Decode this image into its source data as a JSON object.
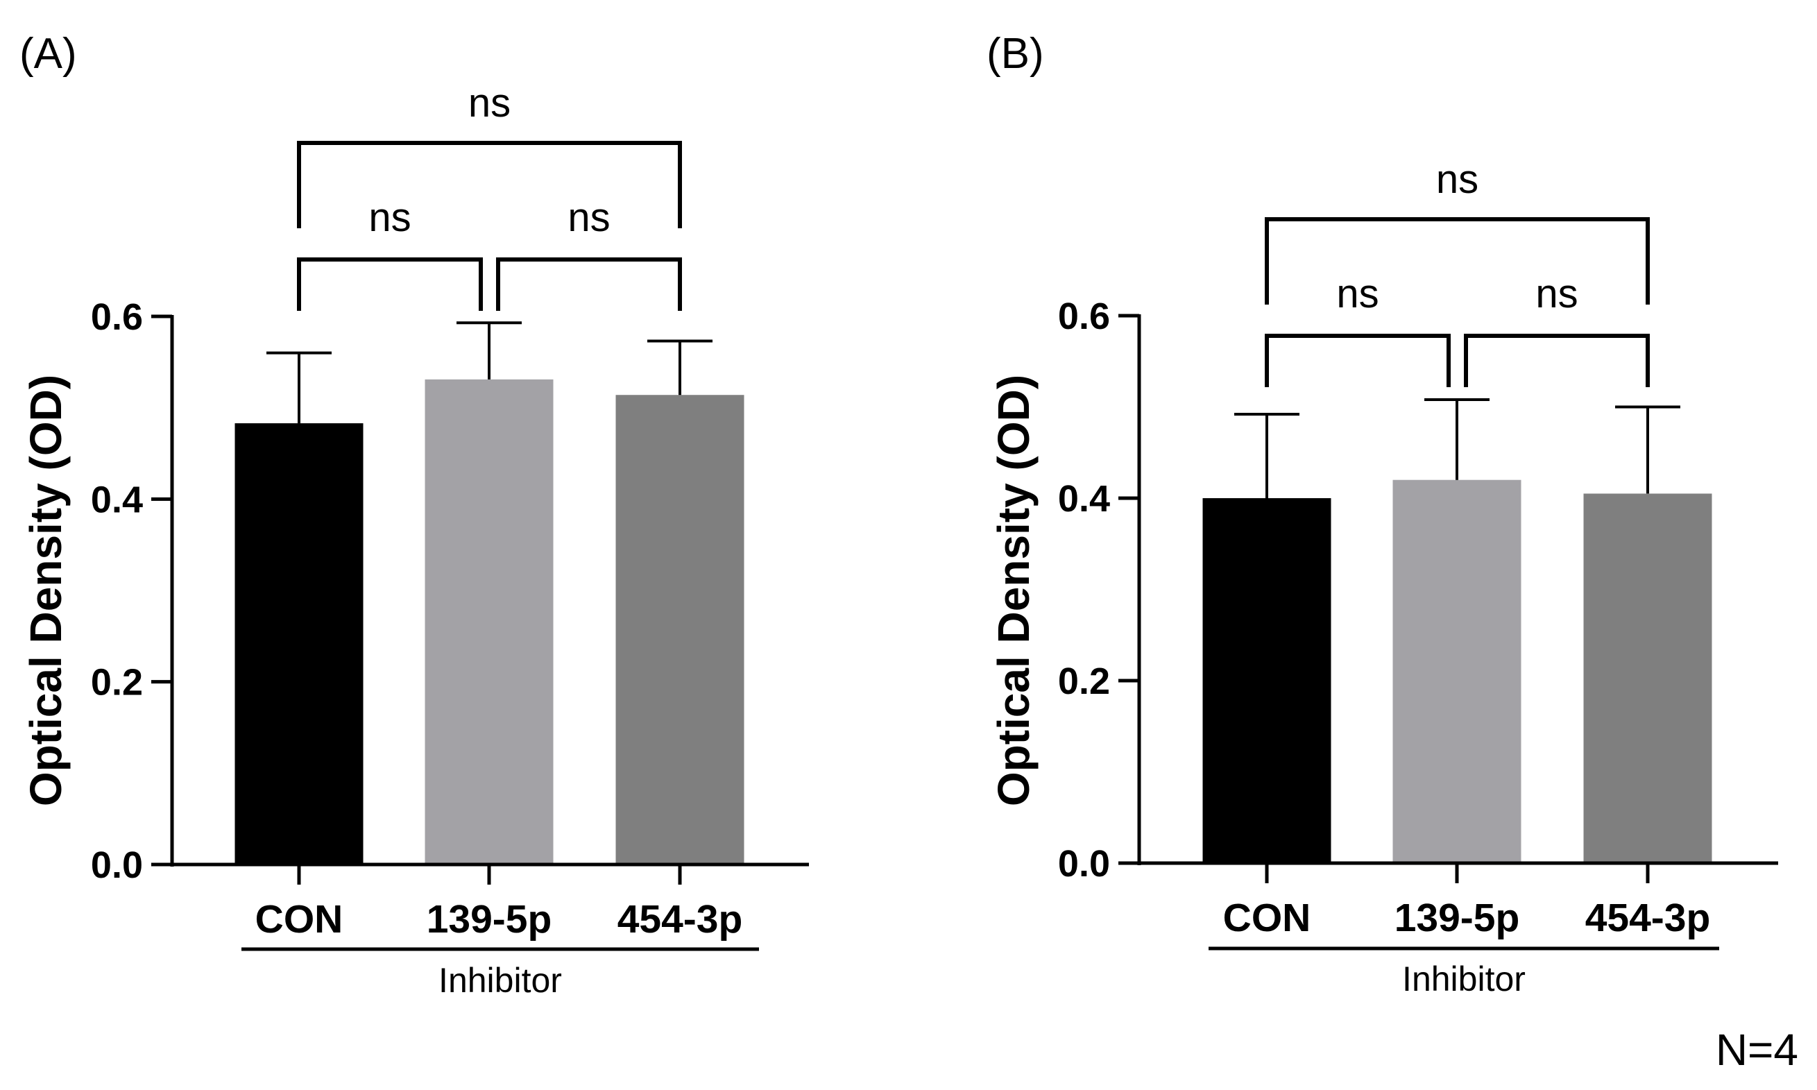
{
  "chart_data": [
    {
      "panel": "(A)",
      "type": "bar",
      "title": "",
      "xlabel": "Inhibitor",
      "ylabel": "Optical Density (OD)",
      "ylim": [
        0,
        0.6
      ],
      "yticks": [
        "0.0",
        "0.2",
        "0.4",
        "0.6"
      ],
      "categories": [
        "CON",
        "139-5p",
        "454-3p"
      ],
      "values": [
        0.483,
        0.531,
        0.514
      ],
      "errors": [
        0.077,
        0.062,
        0.059
      ],
      "colors": [
        "#000000",
        "#a3a2a6",
        "#7f7f7f"
      ],
      "comparisons": [
        {
          "from": "CON",
          "to": "454-3p",
          "label": "ns"
        },
        {
          "from": "CON",
          "to": "139-5p",
          "label": "ns"
        },
        {
          "from": "139-5p",
          "to": "454-3p",
          "label": "ns"
        }
      ]
    },
    {
      "panel": "(B)",
      "type": "bar",
      "title": "",
      "xlabel": "Inhibitor",
      "ylabel": "Optical Density (OD)",
      "ylim": [
        0,
        0.6
      ],
      "yticks": [
        "0.0",
        "0.2",
        "0.4",
        "0.6"
      ],
      "categories": [
        "CON",
        "139-5p",
        "454-3p"
      ],
      "values": [
        0.4,
        0.42,
        0.405
      ],
      "errors": [
        0.092,
        0.088,
        0.095
      ],
      "colors": [
        "#000000",
        "#a3a2a6",
        "#7f7f7f"
      ],
      "comparisons": [
        {
          "from": "CON",
          "to": "454-3p",
          "label": "ns"
        },
        {
          "from": "CON",
          "to": "139-5p",
          "label": "ns"
        },
        {
          "from": "139-5p",
          "to": "454-3p",
          "label": "ns"
        }
      ]
    }
  ],
  "footnote": "N=4"
}
